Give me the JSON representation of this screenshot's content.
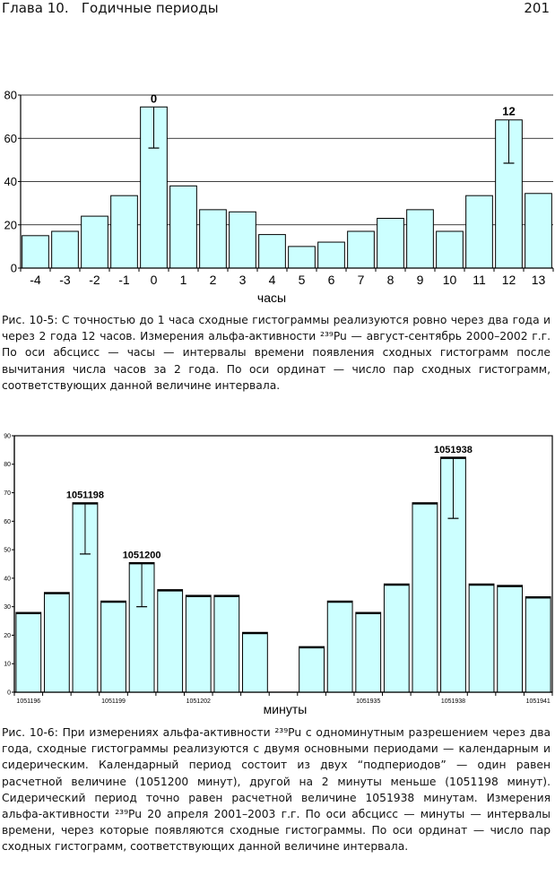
{
  "header": {
    "chapter": "Глава 10.",
    "title": "Годичные периоды",
    "page_number": "201"
  },
  "chart_data": [
    {
      "type": "bar",
      "categories": [
        "-4",
        "-3",
        "-2",
        "-1",
        "0",
        "1",
        "2",
        "3",
        "4",
        "5",
        "6",
        "7",
        "8",
        "9",
        "10",
        "11",
        "12",
        "13"
      ],
      "values": [
        15,
        17,
        24,
        33.5,
        74.5,
        38,
        27,
        26,
        15.5,
        10,
        12,
        17,
        23,
        27,
        17,
        33.5,
        68.5,
        34.5
      ],
      "xlabel": "часы",
      "ylabel": "",
      "ylim": [
        0,
        80
      ],
      "yticks": [
        "0",
        "20",
        "40",
        "60",
        "80"
      ],
      "grid": true,
      "error_bars": [
        {
          "index": 4,
          "low": 55.5
        },
        {
          "index": 16,
          "low": 48.5
        }
      ],
      "annotations": [
        {
          "index": 4,
          "text": "0"
        },
        {
          "index": 16,
          "text": "12"
        }
      ]
    },
    {
      "type": "bar",
      "categories": [
        "1051196",
        "",
        "",
        "1051199",
        "",
        "",
        "1051202",
        "",
        "",
        "",
        "",
        "",
        "1051935",
        "",
        "",
        "1051938",
        "",
        "",
        "1051941"
      ],
      "values": [
        28,
        35,
        66.5,
        32,
        45.5,
        36,
        34,
        34,
        21,
        null,
        16,
        32,
        28,
        38,
        66.5,
        82.5,
        38,
        37.5,
        33.5
      ],
      "xlabel": "минуты",
      "ylabel": "",
      "ylim": [
        0,
        90
      ],
      "yticks": [
        "0",
        "10",
        "20",
        "30",
        "40",
        "50",
        "60",
        "70",
        "80",
        "90"
      ],
      "grid": false,
      "error_bars": [
        {
          "index": 2,
          "low": 48.5
        },
        {
          "index": 4,
          "low": 30
        },
        {
          "index": 15,
          "low": 61
        }
      ],
      "annotations": [
        {
          "index": 2,
          "text": "1051198"
        },
        {
          "index": 4,
          "text": "1051200"
        },
        {
          "index": 15,
          "text": "1051938"
        }
      ]
    }
  ],
  "captions": {
    "fig1": "Рис. 10-5: С точностью до 1 часа сходные гистограммы реализуются ровно через два года и через 2 года 12 часов. Измерения альфа-активности ²³⁹Pu — август-сентябрь 2000–2002 г.г. По оси абсцисс — часы — интервалы времени появления сходных гистограмм после вычитания числа часов за 2 года. По оси ординат — число пар сходных гистограмм, соответствующих данной величине интервала.",
    "fig2": "Рис. 10-6: При измерениях альфа-активности ²³⁹Pu с одноминутным разрешением через два года, сходные гистограммы реализуются с двумя основными периодами — календарным и сидерическим. Календарный период состоит из двух “подпериодов” — один равен расчетной величине (1051200 минут), другой на 2 минуты меньше (1051198 минут). Сидерический период точно равен расчетной величине 1051938 минутам. Измерения альфа-активности ²³⁹Pu 20 апреля 2001–2003 г.г. По оси абсцисс — минуты — интервалы времени, через которые появляются сходные гистограммы. По оси ординат — число пар сходных гистограмм, соответствующих данной величине интервала."
  },
  "colors": {
    "bar_fill": "#ccffff",
    "bar_stroke": "#000000",
    "grid": "#000000"
  }
}
